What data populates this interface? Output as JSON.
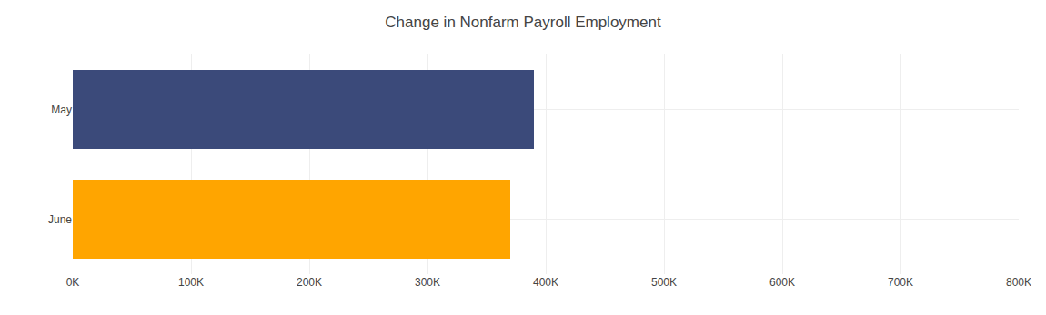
{
  "chart_data": {
    "type": "bar",
    "orientation": "horizontal",
    "title": "Change in Nonfarm Payroll Employment",
    "categories": [
      "June",
      "May"
    ],
    "values": [
      370000,
      390000
    ],
    "colors": [
      "#FFA500",
      "#3B4A7A"
    ],
    "xlim": [
      0,
      800000
    ],
    "xticks": [
      {
        "value": 0,
        "label": "0K"
      },
      {
        "value": 100000,
        "label": "100K"
      },
      {
        "value": 200000,
        "label": "200K"
      },
      {
        "value": 300000,
        "label": "300K"
      },
      {
        "value": 400000,
        "label": "400K"
      },
      {
        "value": 500000,
        "label": "500K"
      },
      {
        "value": 600000,
        "label": "600K"
      },
      {
        "value": 700000,
        "label": "700K"
      },
      {
        "value": 800000,
        "label": "800K"
      }
    ],
    "grid": true
  }
}
